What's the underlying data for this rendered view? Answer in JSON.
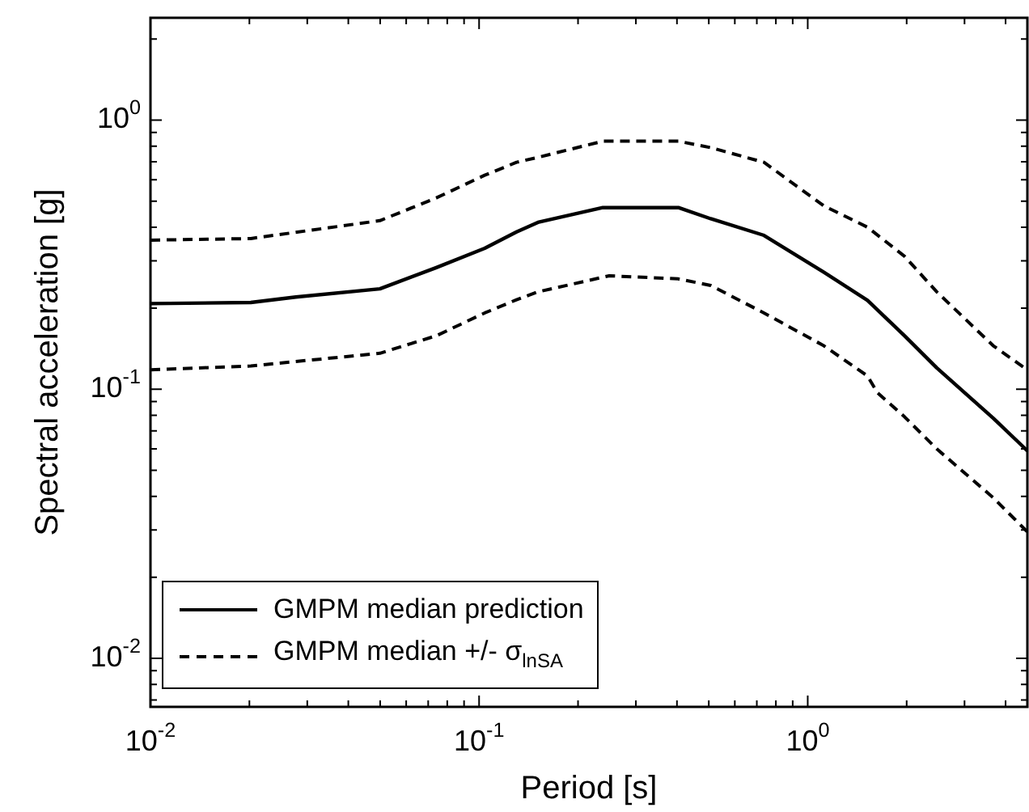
{
  "chart_data": {
    "type": "line",
    "xlabel": "Period [s]",
    "ylabel": "Spectral acceleration [g]",
    "log": "xy",
    "grid": false,
    "legend": "bottom left",
    "marker": "none",
    "xlim": [
      0.01,
      4.66
    ],
    "ylim": [
      0.0066,
      2.4
    ],
    "xticks": [
      {
        "value": 0.01,
        "label": "10$^{-2}$"
      },
      {
        "value": 0.02,
        "label": null
      },
      {
        "value": 0.03,
        "label": null
      },
      {
        "value": 0.04,
        "label": null
      },
      {
        "value": 0.05,
        "label": null
      },
      {
        "value": 0.06,
        "label": null
      },
      {
        "value": 0.07,
        "label": null
      },
      {
        "value": 0.08,
        "label": null
      },
      {
        "value": 0.09,
        "label": null
      },
      {
        "value": 0.1,
        "label": "10$^{-1}$"
      },
      {
        "value": 0.2,
        "label": null
      },
      {
        "value": 0.3,
        "label": null
      },
      {
        "value": 0.4,
        "label": null
      },
      {
        "value": 0.5,
        "label": null
      },
      {
        "value": 0.6,
        "label": null
      },
      {
        "value": 0.7,
        "label": null
      },
      {
        "value": 0.8,
        "label": null
      },
      {
        "value": 0.9,
        "label": null
      },
      {
        "value": 1,
        "label": "10$^{0}$"
      },
      {
        "value": 2,
        "label": null
      },
      {
        "value": 3,
        "label": null
      },
      {
        "value": 4,
        "label": null
      }
    ],
    "yticks": [
      {
        "value": 0.007,
        "label": null
      },
      {
        "value": 0.008,
        "label": null
      },
      {
        "value": 0.009,
        "label": null
      },
      {
        "value": 0.01,
        "label": "10$^{-2}$"
      },
      {
        "value": 0.02,
        "label": null
      },
      {
        "value": 0.03,
        "label": null
      },
      {
        "value": 0.04,
        "label": null
      },
      {
        "value": 0.05,
        "label": null
      },
      {
        "value": 0.06,
        "label": null
      },
      {
        "value": 0.07,
        "label": null
      },
      {
        "value": 0.08,
        "label": null
      },
      {
        "value": 0.09,
        "label": null
      },
      {
        "value": 0.1,
        "label": "10$^{-1}$"
      },
      {
        "value": 0.2,
        "label": null
      },
      {
        "value": 0.3,
        "label": null
      },
      {
        "value": 0.4,
        "label": null
      },
      {
        "value": 0.5,
        "label": null
      },
      {
        "value": 0.6,
        "label": null
      },
      {
        "value": 0.7,
        "label": null
      },
      {
        "value": 0.8,
        "label": null
      },
      {
        "value": 0.9,
        "label": null
      },
      {
        "value": 1,
        "label": "10$^{0}$"
      },
      {
        "value": 2,
        "label": null
      }
    ],
    "series": [
      {
        "name": "GMPM median prediction",
        "color": "#000000",
        "line_style": "solid",
        "x": [
          0.01,
          0.0202,
          0.0277,
          0.0499,
          0.0741,
          0.104,
          0.13,
          0.151,
          0.238,
          0.404,
          0.507,
          0.736,
          1.12,
          1.52,
          1.97,
          2.47,
          3.67,
          4.35,
          4.66
        ],
        "values": [
          0.208,
          0.21,
          0.22,
          0.236,
          0.283,
          0.334,
          0.384,
          0.417,
          0.473,
          0.473,
          0.43,
          0.373,
          0.272,
          0.214,
          0.158,
          0.12,
          0.078,
          0.064,
          0.059
        ]
      },
      {
        "name": "GMPM median +/- σ$_{lnSA}$",
        "color": "#000000",
        "line_style": "dashed",
        "x": [
          0.01,
          0.0202,
          0.0499,
          0.0741,
          0.104,
          0.13,
          0.151,
          0.238,
          0.404,
          0.507,
          0.736,
          1.12,
          1.52,
          1.97,
          2.47,
          3.67,
          4.66
        ],
        "values": [
          0.358,
          0.363,
          0.423,
          0.514,
          0.624,
          0.697,
          0.727,
          0.835,
          0.835,
          0.79,
          0.697,
          0.48,
          0.4,
          0.312,
          0.23,
          0.145,
          0.118
        ]
      },
      {
        "color": "#000000",
        "line_style": "dashed",
        "x": [
          0.01,
          0.0202,
          0.0499,
          0.0741,
          0.104,
          0.13,
          0.151,
          0.249,
          0.404,
          0.507,
          0.736,
          1.12,
          1.52,
          1.63,
          1.97,
          2.47,
          3.67,
          4.66
        ],
        "values": [
          0.118,
          0.122,
          0.136,
          0.158,
          0.192,
          0.215,
          0.23,
          0.264,
          0.257,
          0.243,
          0.192,
          0.145,
          0.112,
          0.097,
          0.079,
          0.06,
          0.0395,
          0.0295
        ]
      }
    ]
  }
}
